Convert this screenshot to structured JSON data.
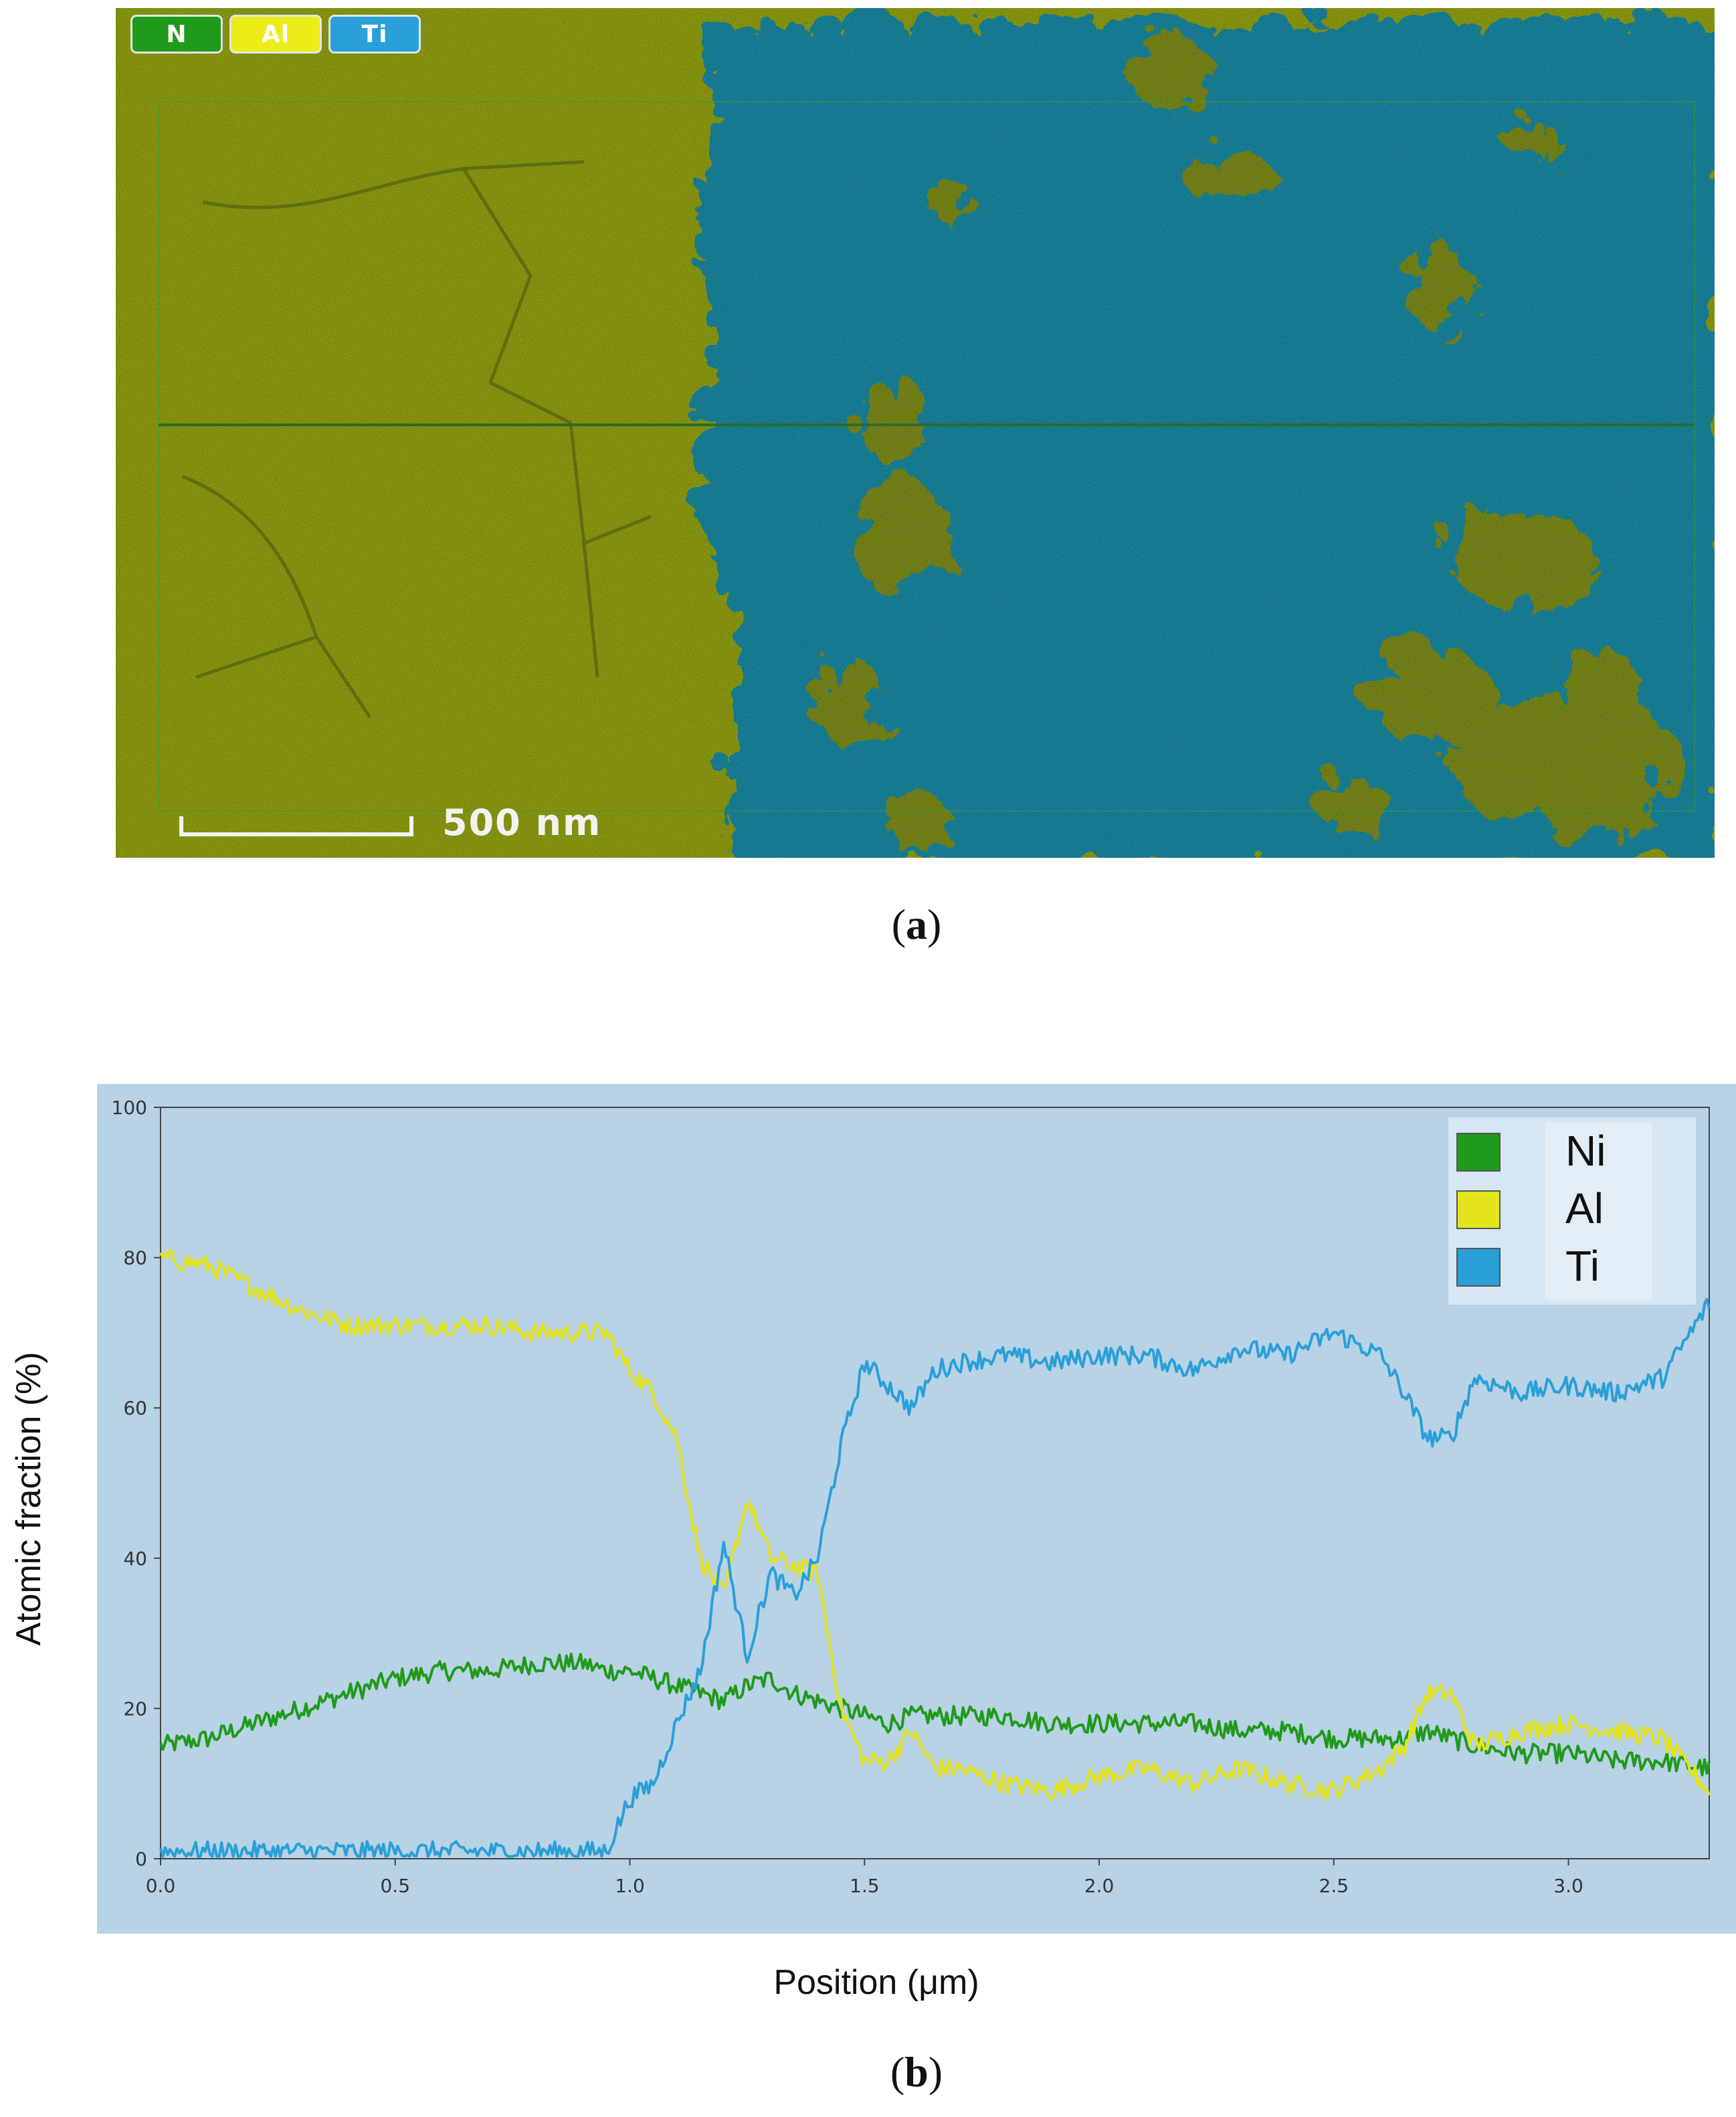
{
  "panel_a": {
    "legend": [
      {
        "label": "N",
        "color": "#1f9a1a"
      },
      {
        "label": "Al",
        "color": "#ecec18"
      },
      {
        "label": "Ti",
        "color": "#2a9fd8"
      }
    ],
    "scale_bar_label": "500 nm",
    "caption": "a"
  },
  "panel_b": {
    "caption": "b"
  },
  "chart_data": {
    "type": "line",
    "title": "",
    "xlabel": "Position (μm)",
    "ylabel": "Atomic fraction (%)",
    "xlim": [
      0,
      3.3
    ],
    "ylim": [
      0,
      100
    ],
    "x_ticks": [
      "0.0",
      "0.5",
      "1.0",
      "1.5",
      "2.0",
      "2.5",
      "3.0"
    ],
    "y_ticks": [
      "0",
      "20",
      "40",
      "60",
      "80",
      "100"
    ],
    "x": [
      0.0,
      0.1,
      0.2,
      0.3,
      0.4,
      0.5,
      0.6,
      0.7,
      0.8,
      0.9,
      0.95,
      1.0,
      1.05,
      1.1,
      1.15,
      1.2,
      1.25,
      1.3,
      1.35,
      1.4,
      1.45,
      1.5,
      1.55,
      1.6,
      1.65,
      1.7,
      1.8,
      1.9,
      2.0,
      2.1,
      2.2,
      2.3,
      2.4,
      2.5,
      2.6,
      2.65,
      2.7,
      2.75,
      2.8,
      2.9,
      3.0,
      3.1,
      3.2,
      3.3
    ],
    "series": [
      {
        "name": "Ni",
        "color": "#1f9a1a",
        "values": [
          15,
          16,
          18,
          20,
          22,
          24,
          25,
          25,
          26,
          26,
          25,
          25,
          24,
          23,
          22,
          21,
          23,
          24,
          22,
          21,
          20,
          19,
          18,
          19,
          19,
          19,
          19,
          18,
          18,
          18,
          18,
          17,
          17,
          16,
          16,
          16,
          17,
          16,
          15,
          14,
          14,
          13,
          13,
          12
        ]
      },
      {
        "name": "Al",
        "color": "#e4e41e",
        "values": [
          80,
          79,
          76,
          73,
          71,
          71,
          71,
          71,
          70,
          70,
          70,
          65,
          62,
          56,
          40,
          35,
          48,
          40,
          39,
          38,
          20,
          13,
          13,
          17,
          12,
          12,
          10,
          9,
          11,
          12,
          10,
          12,
          10,
          9,
          12,
          15,
          22,
          22,
          15,
          17,
          18,
          17,
          16,
          9
        ]
      },
      {
        "name": "Ti",
        "color": "#2a9fd8",
        "values": [
          1,
          1,
          1,
          1,
          1,
          1,
          1,
          1,
          1,
          1,
          1,
          8,
          10,
          18,
          25,
          42,
          27,
          38,
          35,
          40,
          55,
          66,
          63,
          60,
          65,
          66,
          67,
          66,
          67,
          67,
          65,
          68,
          67,
          70,
          67,
          62,
          56,
          56,
          64,
          62,
          63,
          62,
          64,
          74
        ]
      }
    ],
    "legend_position": "top-right",
    "grid": false
  }
}
